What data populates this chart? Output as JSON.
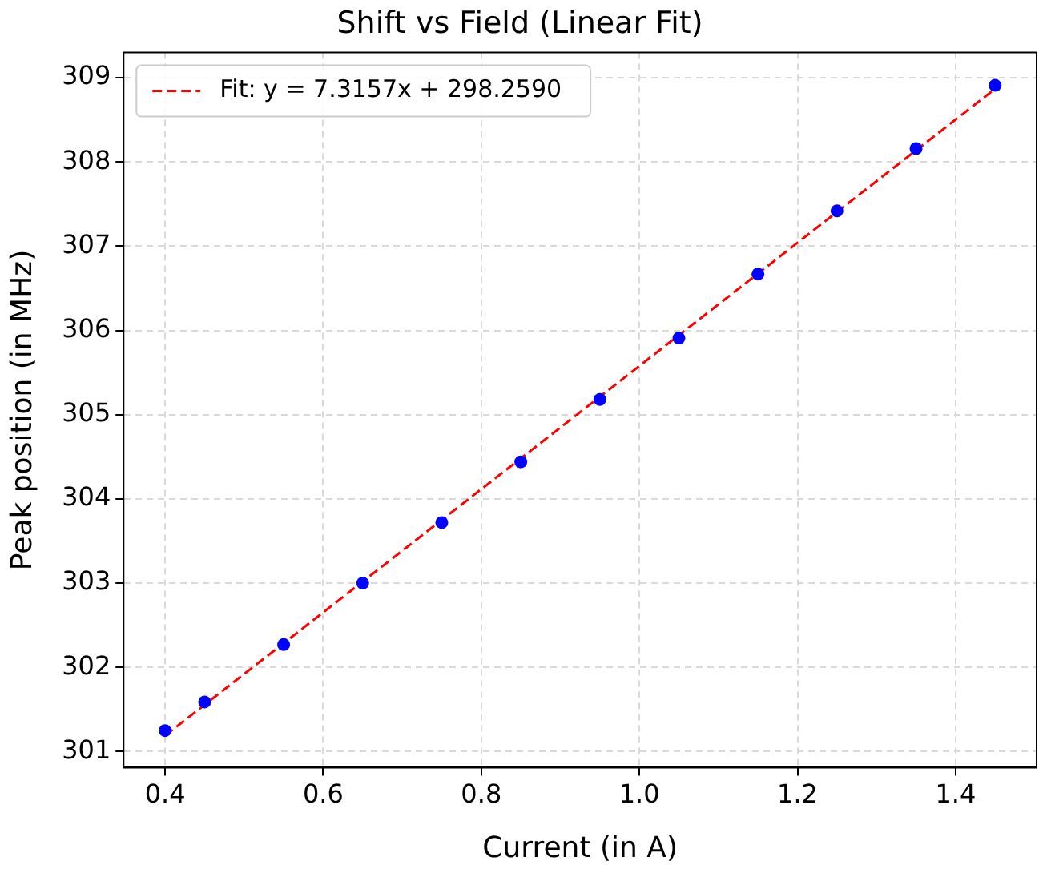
{
  "chart_data": {
    "type": "scatter",
    "title": "Shift vs Field (Linear Fit)",
    "xlabel": "Current (in A)",
    "ylabel": "Peak position (in MHz)",
    "xlim": [
      0.3475,
      1.5025
    ],
    "xticks": [
      {
        "value": 0.4,
        "label": "0.4"
      },
      {
        "value": 0.6,
        "label": "0.6"
      },
      {
        "value": 0.8,
        "label": "0.8"
      },
      {
        "value": 1.0,
        "label": "1.0"
      },
      {
        "value": 1.2,
        "label": "1.2"
      },
      {
        "value": 1.4,
        "label": "1.4"
      }
    ],
    "ylim": [
      300.81,
      309.3
    ],
    "yticks": [
      301,
      302,
      303,
      304,
      305,
      306,
      307,
      308,
      309
    ],
    "grid": true,
    "legend": "top left",
    "series": [
      {
        "color": "#0000ff",
        "marker": "circle",
        "x": [
          0.4,
          0.45,
          0.55,
          0.65,
          0.75,
          0.85,
          0.95,
          1.05,
          1.15,
          1.25,
          1.35,
          1.45
        ],
        "values": [
          301.25,
          301.59,
          302.27,
          303.0,
          303.72,
          304.44,
          305.18,
          305.91,
          306.67,
          307.42,
          308.16,
          308.91
        ]
      },
      {
        "type": "line",
        "name": "Fit: y = 7.3157x + 298.2590",
        "color": "#ff0000",
        "line_style": "dashed",
        "marker": "none",
        "x": [
          0.4,
          1.45
        ],
        "values": [
          301.19,
          308.87
        ]
      }
    ]
  }
}
